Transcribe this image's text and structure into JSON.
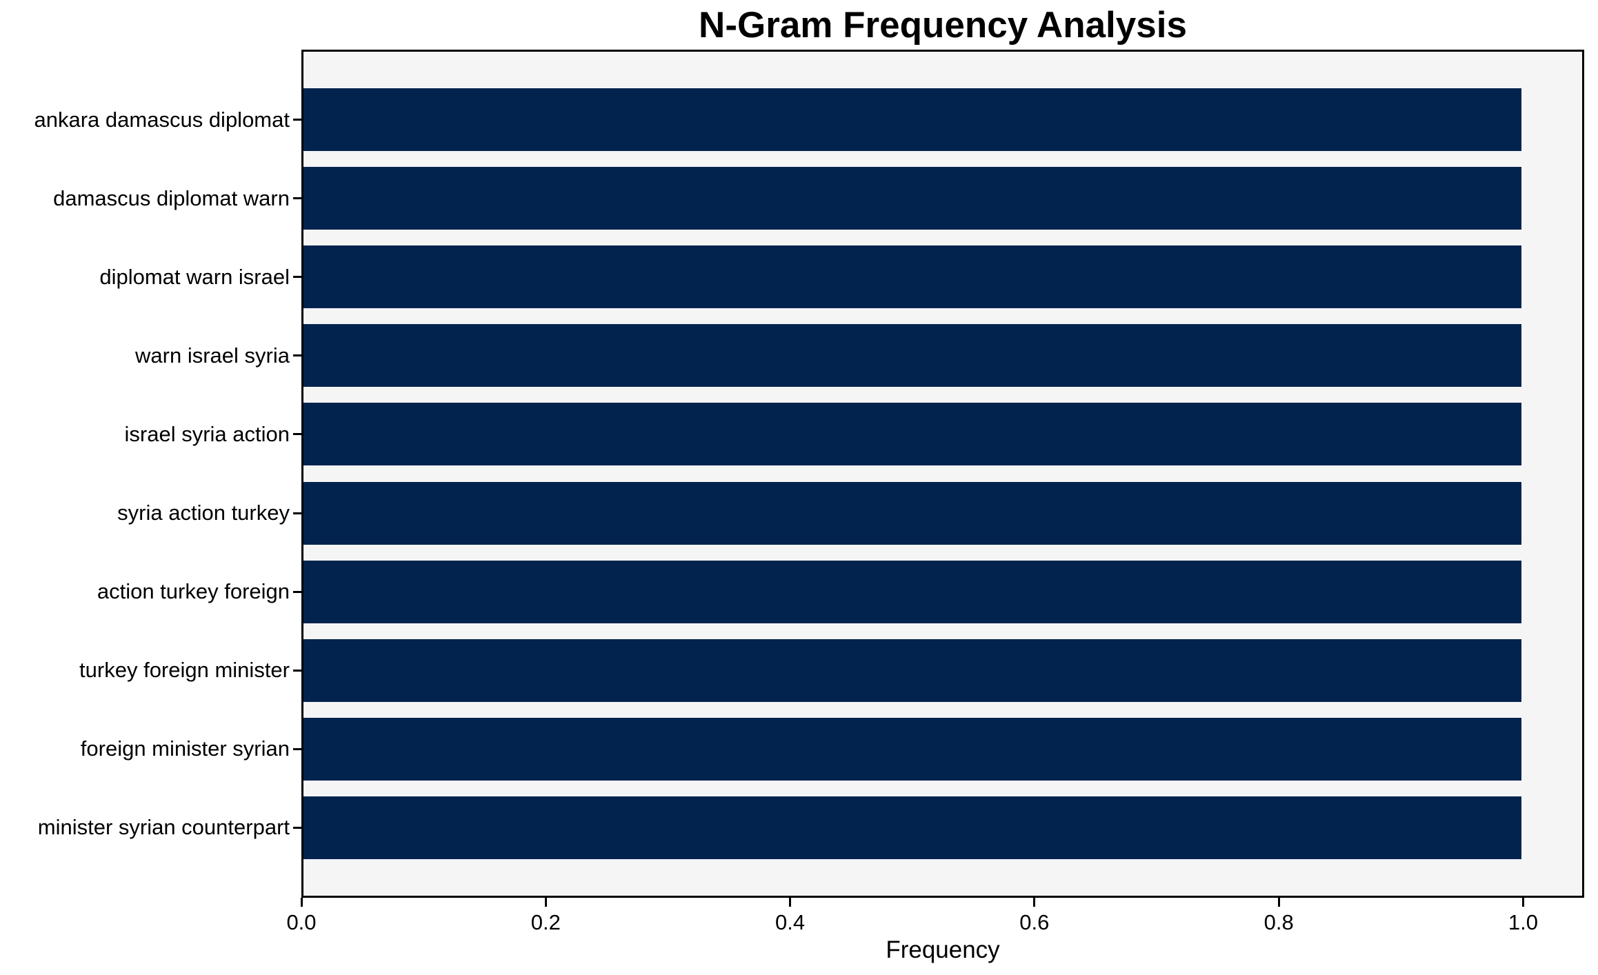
{
  "chart_data": {
    "type": "bar",
    "orientation": "horizontal",
    "title": "N-Gram Frequency Analysis",
    "xlabel": "Frequency",
    "ylabel": "",
    "categories": [
      "ankara damascus diplomat",
      "damascus diplomat warn",
      "diplomat warn israel",
      "warn israel syria",
      "israel syria action",
      "syria action turkey",
      "action turkey foreign",
      "turkey foreign minister",
      "foreign minister syrian",
      "minister syrian counterpart"
    ],
    "values": [
      1.0,
      1.0,
      1.0,
      1.0,
      1.0,
      1.0,
      1.0,
      1.0,
      1.0,
      1.0
    ],
    "x_ticks": [
      0.0,
      0.2,
      0.4,
      0.6,
      0.8,
      1.0
    ],
    "x_tick_labels": [
      "0.0",
      "0.2",
      "0.4",
      "0.6",
      "0.8",
      "1.0"
    ],
    "xlim": [
      0,
      1.05
    ],
    "grid": false,
    "legend": "none",
    "colors": {
      "bar": "#02234d",
      "plot_background": "#f5f5f6",
      "figure_background": "#ffffff",
      "axis": "#000000",
      "text": "#000000"
    }
  }
}
